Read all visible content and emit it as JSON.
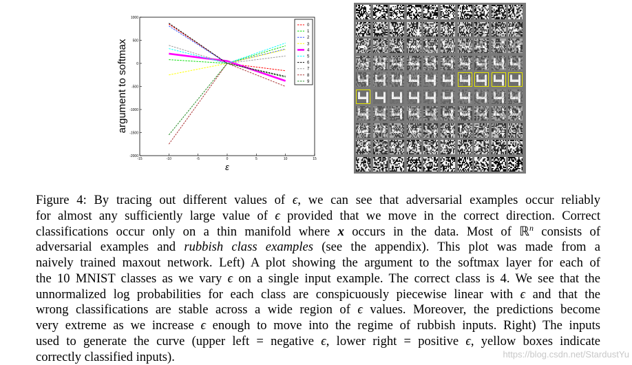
{
  "chart_data": {
    "type": "line",
    "title": "",
    "xlabel": "ε",
    "ylabel": "argument to softmax",
    "xlim": [
      -15,
      15
    ],
    "ylim": [
      -2000,
      1000
    ],
    "xticks": [
      "-15",
      "-10",
      "-5",
      "0",
      "5",
      "10",
      "15"
    ],
    "yticks": [
      "-2000",
      "-1500",
      "-1000",
      "-500",
      "0",
      "500",
      "1000"
    ],
    "legend_position": "top-right",
    "x": [
      -10,
      0,
      10
    ],
    "series": [
      {
        "name": "0",
        "color": "#ff0000",
        "style": "dashed",
        "values": [
          850,
          0,
          -160
        ]
      },
      {
        "name": "1",
        "color": "#00dd00",
        "style": "dashed",
        "values": [
          80,
          0,
          380
        ]
      },
      {
        "name": "2",
        "color": "#3355ff",
        "style": "dashed",
        "values": [
          810,
          0,
          310
        ]
      },
      {
        "name": "3",
        "color": "#ffff00",
        "style": "dashed",
        "values": [
          -250,
          0,
          300
        ]
      },
      {
        "name": "4",
        "color": "#ff00ff",
        "style": "solid",
        "values": [
          210,
          50,
          -380
        ]
      },
      {
        "name": "5",
        "color": "#00ffff",
        "style": "dashed",
        "values": [
          320,
          0,
          440
        ]
      },
      {
        "name": "6",
        "color": "#000000",
        "style": "dashed",
        "values": [
          870,
          0,
          -280
        ]
      },
      {
        "name": "7",
        "color": "#999999",
        "style": "dashed",
        "values": [
          390,
          0,
          160
        ]
      },
      {
        "name": "8",
        "color": "#aa3333",
        "style": "dashed",
        "values": [
          -1750,
          0,
          -500
        ]
      },
      {
        "name": "9",
        "color": "#228822",
        "style": "dashed",
        "values": [
          -1550,
          0,
          -300
        ]
      }
    ]
  },
  "mosaic": {
    "rows": 10,
    "cols": 10,
    "highlight_color": "#e6e600",
    "correct_cells": [
      [
        4,
        6
      ],
      [
        4,
        7
      ],
      [
        4,
        8
      ],
      [
        4,
        9
      ],
      [
        5,
        0
      ]
    ]
  },
  "caption": {
    "lines": [
      [
        {
          "t": "Figure 4:   By tracing out different values of "
        },
        {
          "t": "ϵ",
          "s": "math"
        },
        {
          "t": ", we can see that adversarial examples occur reliably"
        }
      ],
      [
        {
          "t": "for almost any sufficiently large value of "
        },
        {
          "t": "ϵ",
          "s": "math"
        },
        {
          "t": " provided that we move in the correct direction.  Correct"
        }
      ],
      [
        {
          "t": "classifications occur only on a thin manifold where "
        },
        {
          "t": "x",
          "s": "mathb"
        },
        {
          "t": " occurs in the data.  Most of ℝ"
        },
        {
          "t": "n",
          "s": "sup"
        },
        {
          "t": " consists of"
        }
      ],
      [
        {
          "t": "adversarial examples and "
        },
        {
          "t": "rubbish class examples",
          "s": "it"
        },
        {
          "t": " (see the appendix).  This plot was made from a"
        }
      ],
      [
        {
          "t": "naively trained maxout network. Left) A plot showing the argument to the softmax layer for each of"
        }
      ],
      [
        {
          "t": "the 10 MNIST classes as we vary "
        },
        {
          "t": "ϵ",
          "s": "math"
        },
        {
          "t": " on a single input example. The correct class is 4. We see that the"
        }
      ],
      [
        {
          "t": "unnormalized log probabilities for each class are conspicuously piecewise linear with "
        },
        {
          "t": "ϵ",
          "s": "math"
        },
        {
          "t": " and that the"
        }
      ],
      [
        {
          "t": "wrong classifications are stable across a wide region of "
        },
        {
          "t": "ϵ",
          "s": "math"
        },
        {
          "t": " values. Moreover, the predictions become"
        }
      ],
      [
        {
          "t": "very extreme as we increase "
        },
        {
          "t": "ϵ",
          "s": "math"
        },
        {
          "t": " enough to move into the regime of rubbish inputs. Right) The inputs"
        }
      ],
      [
        {
          "t": "used to generate the curve (upper left = negative "
        },
        {
          "t": "ϵ",
          "s": "math"
        },
        {
          "t": ", lower right = positive "
        },
        {
          "t": "ϵ",
          "s": "math"
        },
        {
          "t": ", yellow boxes indicate"
        }
      ],
      [
        {
          "t": "correctly classified inputs)."
        }
      ]
    ]
  },
  "watermark": "https://blog.csdn.net/StardustYu"
}
